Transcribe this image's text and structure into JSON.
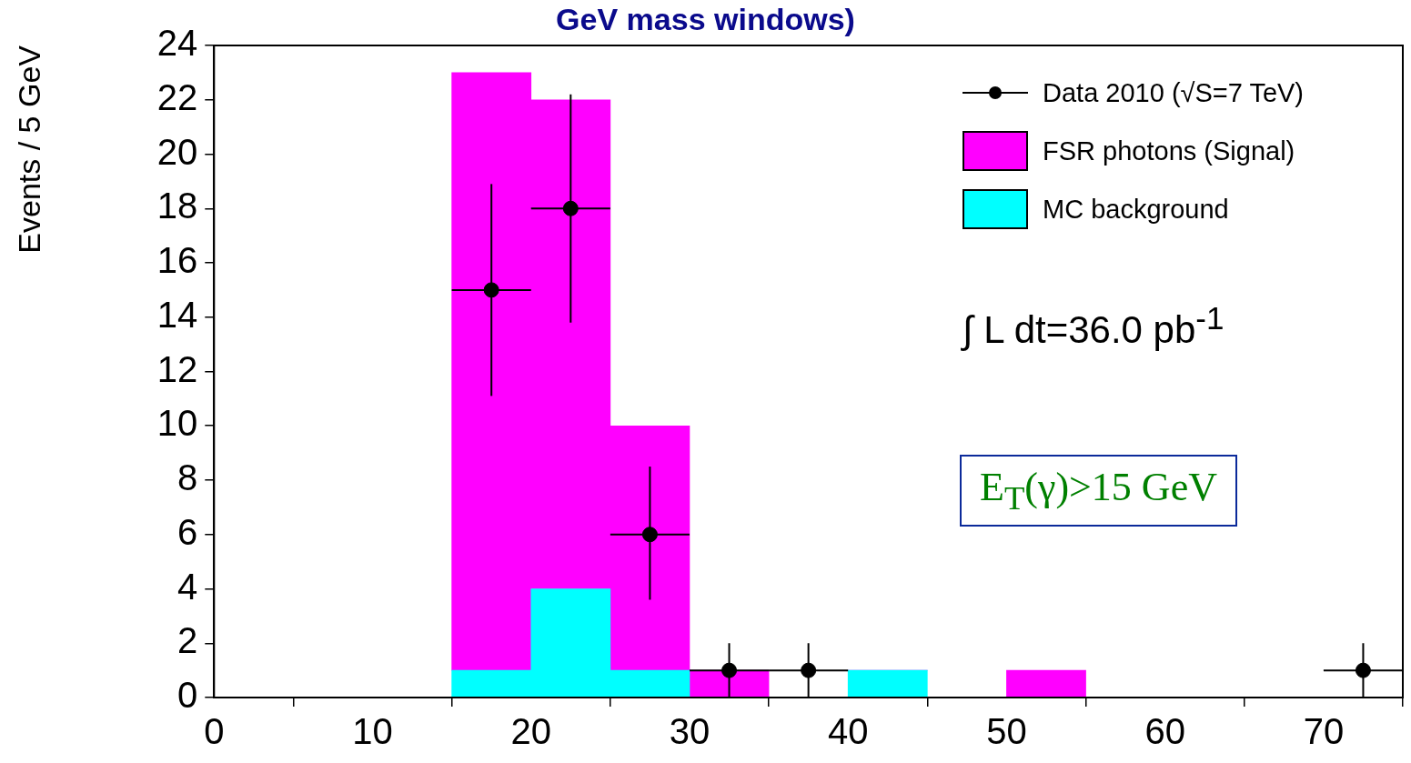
{
  "chart_data": {
    "type": "bar",
    "title": "GeV mass windows)",
    "ylabel": "Events / 5 GeV",
    "x": [
      17.5,
      22.5,
      27.5,
      32.5,
      37.5,
      42.5,
      47.5,
      52.5
    ],
    "stacked": true,
    "series": [
      {
        "name": "MC background",
        "color": "#00ffff",
        "values": [
          1,
          4,
          1,
          0,
          0,
          1,
          0,
          0
        ]
      },
      {
        "name": "FSR photons (Signal)",
        "color": "#ff00ff",
        "values": [
          22,
          18,
          9,
          1,
          0,
          0,
          0,
          1
        ]
      },
      {
        "name": "Data 2010 (√S=7 TeV)",
        "type": "scatter",
        "color": "#000000",
        "marker": "circle",
        "x": [
          17.5,
          22.5,
          27.5,
          32.5,
          37.5,
          72.5
        ],
        "values": [
          15,
          18,
          6,
          1,
          1,
          1
        ],
        "errors": [
          [
            11.1,
            18.9
          ],
          [
            13.8,
            22.2
          ],
          [
            3.6,
            8.5
          ],
          [
            0,
            2
          ],
          [
            0,
            2
          ],
          [
            0,
            2
          ]
        ],
        "xerrors": [
          2.5,
          2.5,
          2.5,
          2.5,
          2.5,
          2.5
        ]
      }
    ],
    "xlim": [
      0,
      75
    ],
    "xticks": [
      0,
      10,
      20,
      30,
      40,
      50,
      60,
      70
    ],
    "ylim": [
      0,
      24
    ],
    "yticks": [
      0,
      2,
      4,
      6,
      8,
      10,
      12,
      14,
      16,
      18,
      20,
      22,
      24
    ],
    "grid": false,
    "legend": "top right",
    "annotations": [
      "∫ L dt=36.0 pb$^{-1}$",
      "E$_{T}$(γ)>15 GeV"
    ]
  }
}
